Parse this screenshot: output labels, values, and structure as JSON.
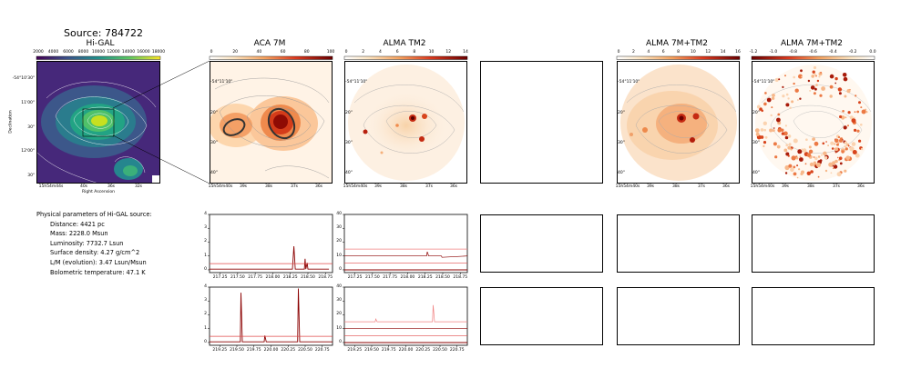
{
  "source_title": "Source: 784722",
  "panel_titles": {
    "higal": "Hi-GAL",
    "aca": "ACA 7M",
    "alma": "ALMA TM2",
    "empty": "",
    "combo": "ALMA 7M+TM2",
    "combo_res": "ALMA 7M+TM2"
  },
  "colorbars": {
    "higal": [
      "2000",
      "4000",
      "6000",
      "8000",
      "10000",
      "12000",
      "14000",
      "16000",
      "18000"
    ],
    "aca": [
      "0",
      "20",
      "40",
      "60",
      "80",
      "100"
    ],
    "alma": [
      "0",
      "2",
      "4",
      "6",
      "8",
      "10",
      "12",
      "14"
    ],
    "combo": [
      "0",
      "2",
      "4",
      "6",
      "8",
      "10",
      "12",
      "14",
      "16"
    ],
    "combo_res": [
      "-1.2",
      "-1.0",
      "-0.8",
      "-0.6",
      "-0.4",
      "-0.2",
      "0.0"
    ]
  },
  "higal_axes": {
    "xlabel": "Right Ascension",
    "ylabel": "Declination",
    "xticks": [
      "15h54m44s",
      "40s",
      "36s",
      "32s"
    ],
    "yticks": [
      "-54°10'30\"",
      "11'00\"",
      "30\"",
      "12'00\"",
      "30\""
    ]
  },
  "zoom_axes": {
    "xticks": [
      "15h54m40s",
      "39s",
      "38s",
      "37s",
      "36s"
    ],
    "yticks": [
      "-54°11'10\"",
      "20\"",
      "30\"",
      "40\""
    ]
  },
  "params": {
    "heading": "Physical parameters of Hi-GAL source:",
    "lines": [
      "Distance: 4421 pc",
      "Mass: 2228.0 Msun",
      "Luminosity: 7732.7 Lsun",
      "Surface density: 4.27 g/cm^2",
      "L/M (evolution): 3.47 Lsun/Msun",
      "Bolometric temperature: 47.1 K"
    ]
  },
  "spectra": {
    "row1_xticks": [
      "217.25",
      "217.50",
      "217.75",
      "218.00",
      "218.25",
      "218.50",
      "218.75"
    ],
    "row2_xticks": [
      "219.25",
      "219.50",
      "219.75",
      "220.00",
      "220.25",
      "220.50",
      "220.75"
    ],
    "aca_yticks": [
      "0",
      "1",
      "2",
      "3",
      "4"
    ],
    "alma_yticks": [
      "0",
      "10",
      "20",
      "30",
      "40"
    ]
  },
  "chart_data": [
    {
      "type": "line",
      "name": "ACA 7M spectrum, window 1",
      "xlim": [
        217.1,
        218.85
      ],
      "ylim": [
        -0.2,
        4
      ],
      "series": [
        {
          "values": [
            [
              217.1,
              0.05
            ],
            [
              217.8,
              0.05
            ],
            [
              218.28,
              0.05
            ],
            [
              218.3,
              1.7
            ],
            [
              218.32,
              0.05
            ],
            [
              218.45,
              0.05
            ],
            [
              218.46,
              0.8
            ],
            [
              218.47,
              0.05
            ],
            [
              218.49,
              0.5
            ],
            [
              218.5,
              0.05
            ],
            [
              218.8,
              0.05
            ]
          ]
        },
        {
          "values": [
            [
              217.1,
              0.45
            ],
            [
              218.85,
              0.45
            ]
          ]
        }
      ]
    },
    {
      "type": "line",
      "name": "ALMA TM2 spectrum, window 1",
      "xlim": [
        217.1,
        218.85
      ],
      "ylim": [
        -2,
        40
      ],
      "series": [
        {
          "values": [
            [
              217.1,
              0
            ],
            [
              218.85,
              0
            ]
          ]
        },
        {
          "values": [
            [
              217.1,
              5
            ],
            [
              218.85,
              5
            ]
          ]
        },
        {
          "values": [
            [
              217.1,
              10
            ],
            [
              218.27,
              10
            ],
            [
              218.28,
              13
            ],
            [
              218.3,
              10
            ],
            [
              218.48,
              10
            ],
            [
              218.49,
              9
            ],
            [
              218.85,
              10
            ]
          ]
        },
        {
          "values": [
            [
              217.1,
              15
            ],
            [
              218.85,
              15
            ]
          ]
        }
      ]
    },
    {
      "type": "line",
      "name": "ACA 7M spectrum, window 2",
      "xlim": [
        219.1,
        220.9
      ],
      "ylim": [
        -0.2,
        4
      ],
      "series": [
        {
          "values": [
            [
              219.1,
              0.05
            ],
            [
              219.55,
              0.05
            ],
            [
              219.56,
              3.6
            ],
            [
              219.58,
              0.05
            ],
            [
              219.9,
              0.05
            ],
            [
              219.91,
              0.5
            ],
            [
              219.93,
              0.05
            ],
            [
              220.39,
              0.05
            ],
            [
              220.4,
              3.9
            ],
            [
              220.42,
              0.05
            ],
            [
              220.9,
              0.05
            ]
          ]
        },
        {
          "values": [
            [
              219.1,
              0.45
            ],
            [
              220.9,
              0.45
            ]
          ]
        }
      ]
    },
    {
      "type": "line",
      "name": "ALMA TM2 spectrum, window 2",
      "xlim": [
        219.1,
        220.9
      ],
      "ylim": [
        -2,
        40
      ],
      "series": [
        {
          "values": [
            [
              219.1,
              0
            ],
            [
              220.9,
              0
            ]
          ]
        },
        {
          "values": [
            [
              219.1,
              5
            ],
            [
              220.9,
              5
            ]
          ]
        },
        {
          "values": [
            [
              219.1,
              10
            ],
            [
              220.9,
              10
            ]
          ]
        },
        {
          "values": [
            [
              219.1,
              15
            ],
            [
              219.55,
              15
            ],
            [
              219.56,
              17
            ],
            [
              219.58,
              15
            ],
            [
              220.39,
              15
            ],
            [
              220.4,
              27
            ],
            [
              220.42,
              15
            ],
            [
              220.9,
              15
            ]
          ]
        }
      ]
    }
  ]
}
